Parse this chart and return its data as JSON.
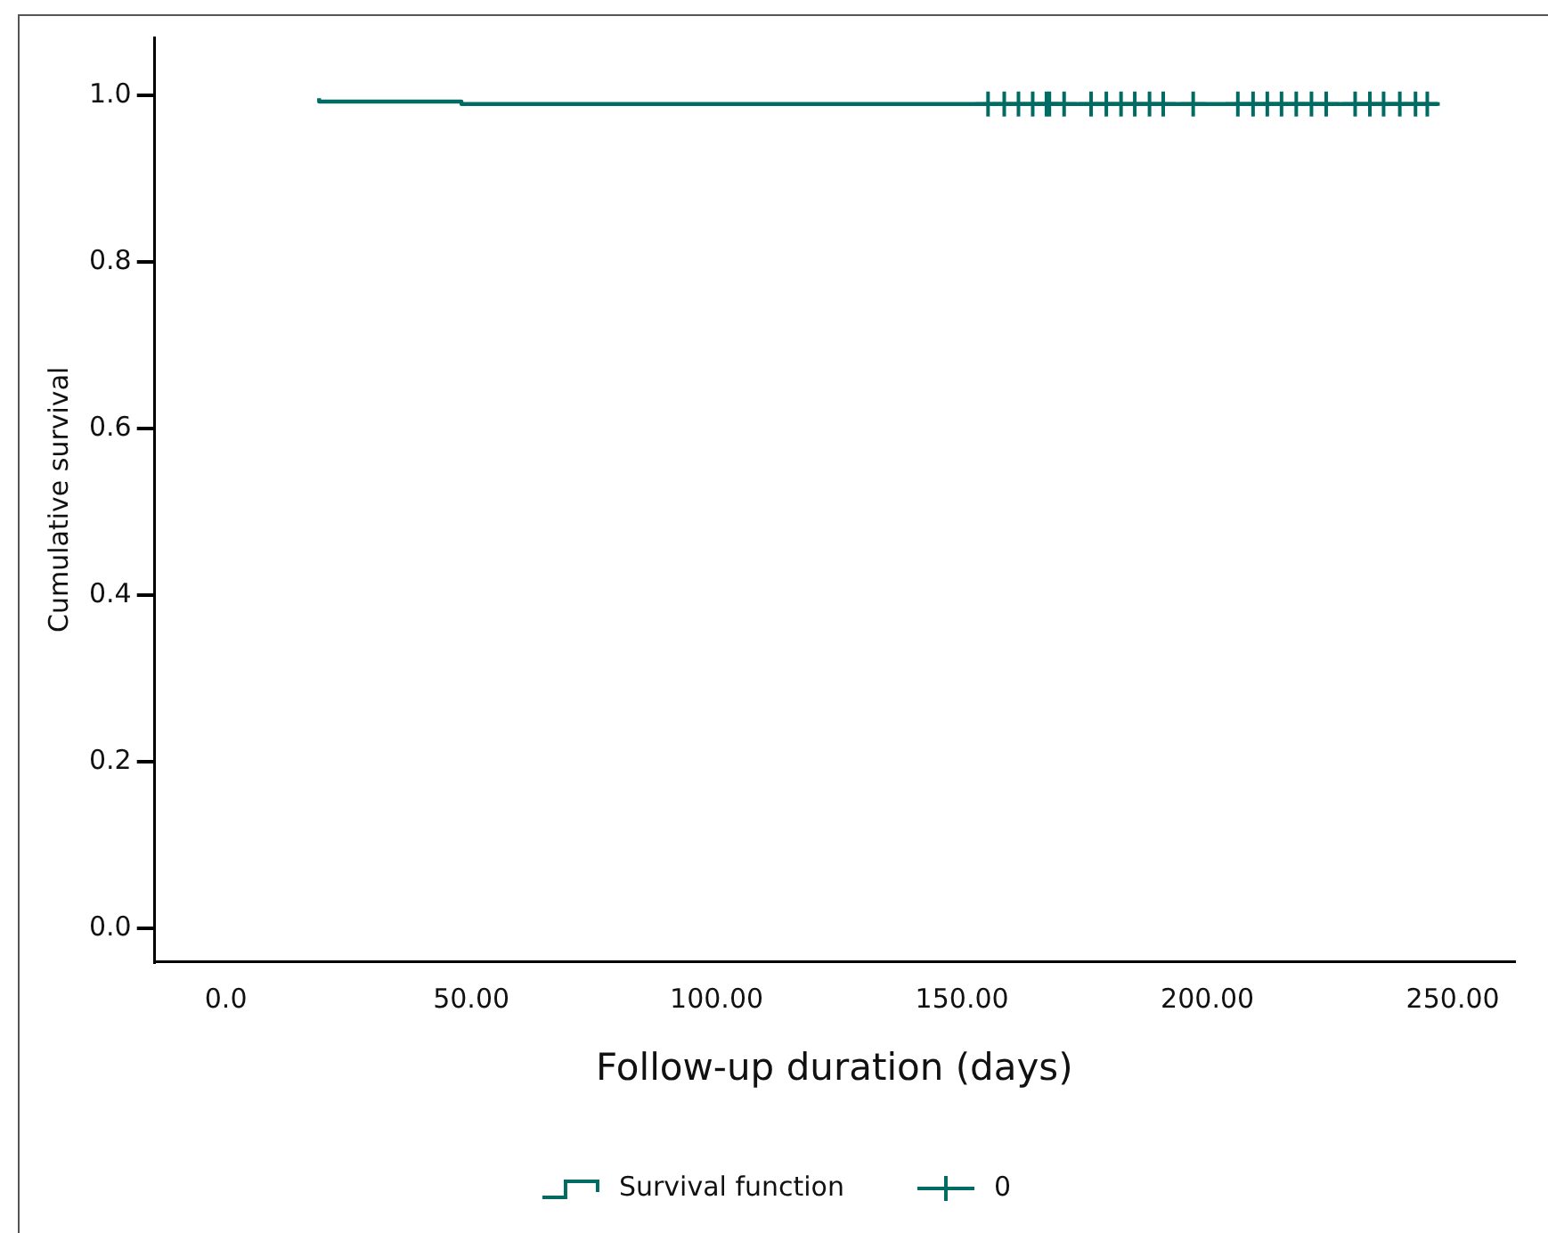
{
  "chart_data": {
    "type": "step",
    "xlabel": "Follow-up duration (days)",
    "ylabel": "Cumulative survival",
    "xlim": [
      -14.5,
      262.5
    ],
    "ylim": [
      -0.04,
      1.07
    ],
    "xticks": [
      {
        "value": 0,
        "label": "0.0"
      },
      {
        "value": 50,
        "label": "50.00"
      },
      {
        "value": 100,
        "label": "100.00"
      },
      {
        "value": 150,
        "label": "150.00"
      },
      {
        "value": 200,
        "label": "200.00"
      },
      {
        "value": 250,
        "label": "250.00"
      }
    ],
    "yticks": [
      {
        "value": 0,
        "label": "0.0"
      },
      {
        "value": 0.2,
        "label": "0.2"
      },
      {
        "value": 0.4,
        "label": "0.4"
      },
      {
        "value": 0.6,
        "label": "0.6"
      },
      {
        "value": 0.8,
        "label": "0.8"
      },
      {
        "value": 1,
        "label": "1.0"
      }
    ],
    "grid": false,
    "legend": "bottom",
    "series": [
      {
        "name": "Survival function",
        "color": "#006b63",
        "marker": "none",
        "x": [
          19,
          48,
          99,
          247
        ],
        "values": [
          0.997,
          0.993,
          0.99,
          0.99
        ]
      },
      {
        "name": "0",
        "type": "scatter",
        "color": "#006b63",
        "marker": "cross",
        "x": [
          155.3,
          158.6,
          161.5,
          164.4,
          167.2,
          167.8,
          170.8,
          176.3,
          179.4,
          182.4,
          185.2,
          188.2,
          191.0,
          197.1,
          206.2,
          209.3,
          212.2,
          215.1,
          218.1,
          221.2,
          224.2,
          230.1,
          233.1,
          235.9,
          239.2,
          242.4,
          244.8
        ],
        "values": [
          0.99,
          0.99,
          0.99,
          0.99,
          0.99,
          0.99,
          0.99,
          0.99,
          0.99,
          0.99,
          0.99,
          0.99,
          0.99,
          0.99,
          0.99,
          0.99,
          0.99,
          0.99,
          0.99,
          0.99,
          0.99,
          0.99,
          0.99,
          0.99,
          0.99,
          0.99,
          0.99
        ]
      }
    ]
  }
}
